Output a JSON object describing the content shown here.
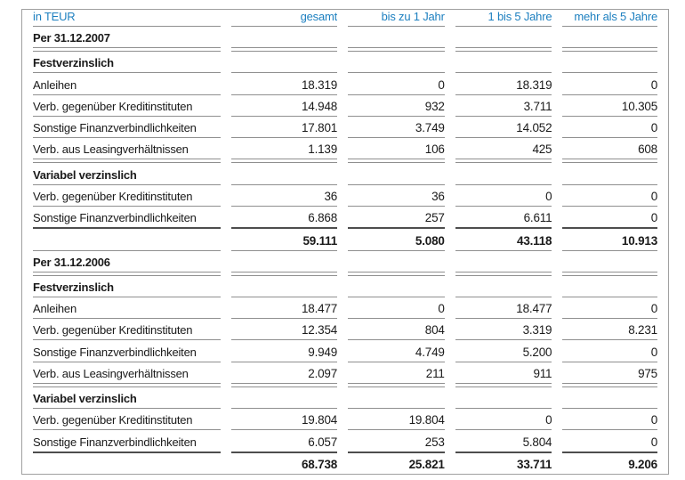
{
  "colors": {
    "header_blue": "#1e80c0",
    "text": "#1a1a1a",
    "row_line": "#8f8f8f",
    "sum_line": "#4d4d4d",
    "outer_border": "#a0a0a0"
  },
  "table": {
    "unit_header": "in TEUR",
    "columns": [
      "gesamt",
      "bis zu 1 Jahr",
      "1 bis 5 Jahre",
      "mehr als 5 Jahre"
    ],
    "rows": [
      {
        "type": "section",
        "label": "Per 31.12.2007",
        "values": [
          "",
          "",
          "",
          ""
        ]
      },
      {
        "type": "empty",
        "label": "",
        "values": [
          "",
          "",
          "",
          ""
        ]
      },
      {
        "type": "section",
        "label": "Festverzinslich",
        "values": [
          "",
          "",
          "",
          ""
        ]
      },
      {
        "type": "data",
        "label": "Anleihen",
        "values": [
          "18.319",
          "0",
          "18.319",
          "0"
        ]
      },
      {
        "type": "data",
        "label": "Verb. gegenüber Kreditinstituten",
        "values": [
          "14.948",
          "932",
          "3.711",
          "10.305"
        ]
      },
      {
        "type": "data",
        "label": "Sonstige Finanzverbindlichkeiten",
        "values": [
          "17.801",
          "3.749",
          "14.052",
          "0"
        ]
      },
      {
        "type": "data",
        "label": "Verb. aus Leasingverhältnissen",
        "values": [
          "1.139",
          "106",
          "425",
          "608"
        ]
      },
      {
        "type": "empty",
        "label": "",
        "values": [
          "",
          "",
          "",
          ""
        ]
      },
      {
        "type": "section",
        "label": "Variabel verzinslich",
        "values": [
          "",
          "",
          "",
          ""
        ]
      },
      {
        "type": "data",
        "label": "Verb. gegenüber Kreditinstituten",
        "values": [
          "36",
          "36",
          "0",
          "0"
        ]
      },
      {
        "type": "data",
        "label": "Sonstige Finanzverbindlichkeiten",
        "values": [
          "6.868",
          "257",
          "6.611",
          "0"
        ],
        "sum_line_below": true
      },
      {
        "type": "total",
        "label": "",
        "values": [
          "59.111",
          "5.080",
          "43.118",
          "10.913"
        ]
      },
      {
        "type": "section",
        "label": "Per 31.12.2006",
        "values": [
          "",
          "",
          "",
          ""
        ]
      },
      {
        "type": "empty",
        "label": "",
        "values": [
          "",
          "",
          "",
          ""
        ]
      },
      {
        "type": "section",
        "label": "Festverzinslich",
        "values": [
          "",
          "",
          "",
          ""
        ]
      },
      {
        "type": "data",
        "label": "Anleihen",
        "values": [
          "18.477",
          "0",
          "18.477",
          "0"
        ]
      },
      {
        "type": "data",
        "label": "Verb. gegenüber Kreditinstituten",
        "values": [
          "12.354",
          "804",
          "3.319",
          "8.231"
        ]
      },
      {
        "type": "data",
        "label": "Sonstige Finanzverbindlichkeiten",
        "values": [
          "9.949",
          "4.749",
          "5.200",
          "0"
        ]
      },
      {
        "type": "data",
        "label": "Verb. aus Leasingverhältnissen",
        "values": [
          "2.097",
          "211",
          "911",
          "975"
        ]
      },
      {
        "type": "empty",
        "label": "",
        "values": [
          "",
          "",
          "",
          ""
        ]
      },
      {
        "type": "section",
        "label": "Variabel verzinslich",
        "values": [
          "",
          "",
          "",
          ""
        ]
      },
      {
        "type": "data",
        "label": "Verb. gegenüber Kreditinstituten",
        "values": [
          "19.804",
          "19.804",
          "0",
          "0"
        ]
      },
      {
        "type": "data",
        "label": "Sonstige Finanzverbindlichkeiten",
        "values": [
          "6.057",
          "253",
          "5.804",
          "0"
        ],
        "sum_line_below": true
      },
      {
        "type": "total",
        "label": "",
        "values": [
          "68.738",
          "25.821",
          "33.711",
          "9.206"
        ]
      }
    ]
  }
}
